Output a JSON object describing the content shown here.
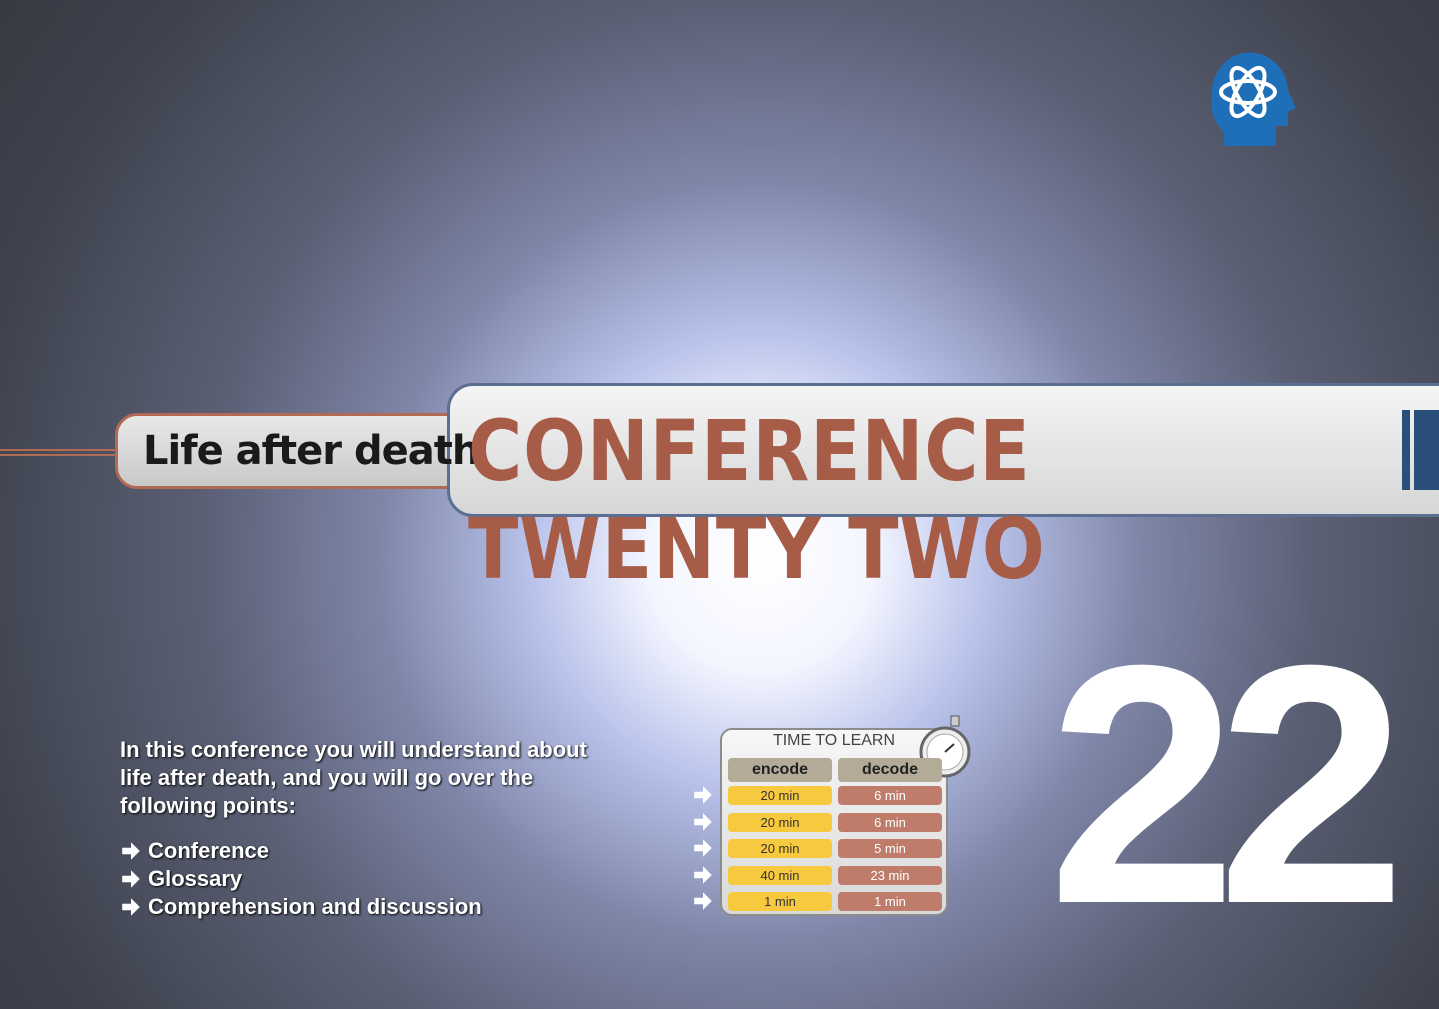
{
  "subtitle": "Life after death",
  "title": "CONFERENCE TWENTY TWO",
  "number": "22",
  "intro": "In this conference you will understand about life after death, and you will go over the following points:",
  "points": [
    "Conference",
    "Glossary",
    "Comprehension and discussion"
  ],
  "time_table": {
    "title": "TIME TO LEARN",
    "headers": [
      "encode",
      "decode"
    ],
    "rows": [
      [
        "20 min",
        "6 min"
      ],
      [
        "20 min",
        "6 min"
      ],
      [
        "20 min",
        "5 min"
      ],
      [
        "40 min",
        "23 min"
      ],
      [
        "1 min",
        "1 min"
      ]
    ]
  }
}
